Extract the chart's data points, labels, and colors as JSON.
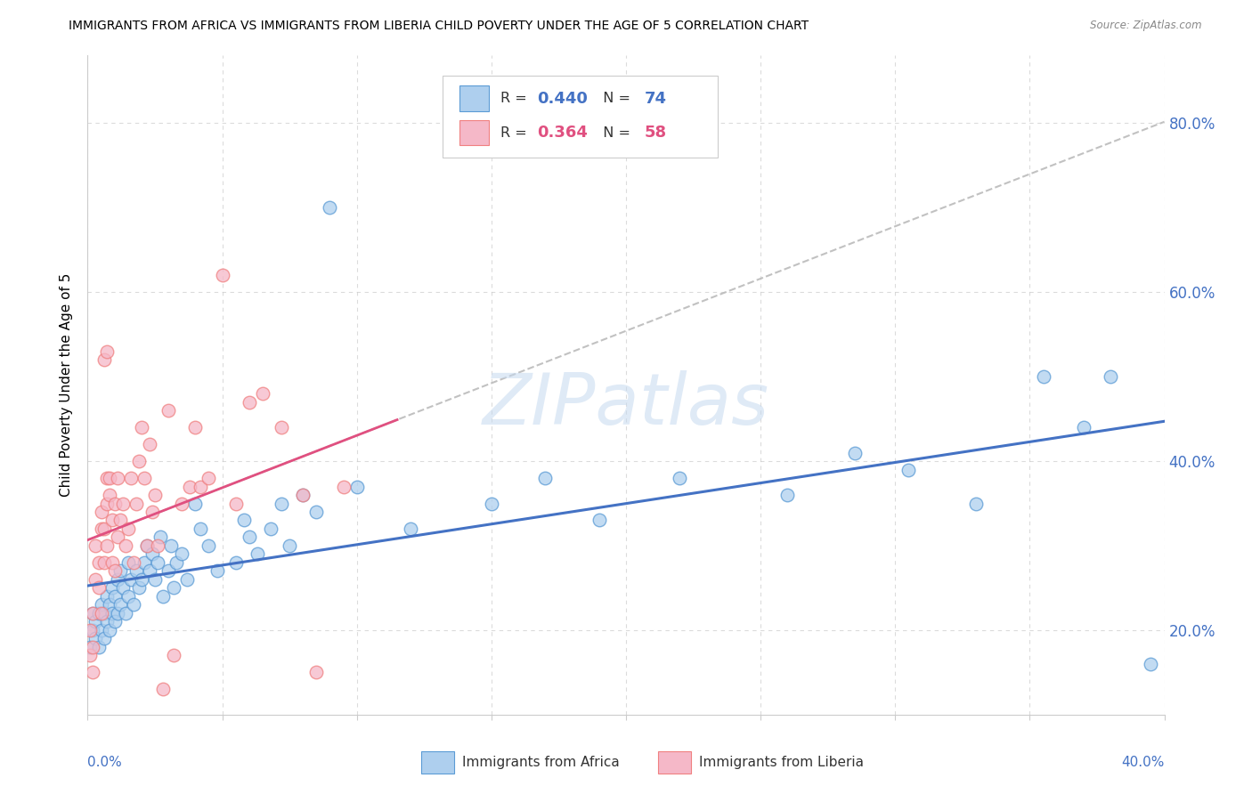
{
  "title": "IMMIGRANTS FROM AFRICA VS IMMIGRANTS FROM LIBERIA CHILD POVERTY UNDER THE AGE OF 5 CORRELATION CHART",
  "source": "Source: ZipAtlas.com",
  "ylabel": "Child Poverty Under the Age of 5",
  "xlim": [
    0.0,
    0.4
  ],
  "ylim": [
    0.1,
    0.88
  ],
  "africa_R": 0.44,
  "africa_N": 74,
  "liberia_R": 0.364,
  "liberia_N": 58,
  "africa_fill": "#aecfee",
  "liberia_fill": "#f5b8c8",
  "africa_edge": "#5b9bd5",
  "liberia_edge": "#f08080",
  "africa_line_color": "#4472c4",
  "liberia_line_color": "#e05080",
  "dash_line_color": "#bbbbbb",
  "ytick_right_labels": [
    "20.0%",
    "40.0%",
    "60.0%",
    "80.0%"
  ],
  "ytick_right_vals": [
    0.2,
    0.4,
    0.6,
    0.8
  ],
  "grid_color": "#cccccc",
  "background_color": "#ffffff",
  "watermark": "ZIPatlas",
  "legend_R1": "0.440",
  "legend_N1": "74",
  "legend_R2": "0.364",
  "legend_N2": "58",
  "legend_color1": "#4472c4",
  "legend_color2": "#e05080",
  "africa_scatter_x": [
    0.001,
    0.002,
    0.002,
    0.003,
    0.003,
    0.004,
    0.004,
    0.005,
    0.005,
    0.006,
    0.006,
    0.007,
    0.007,
    0.008,
    0.008,
    0.009,
    0.009,
    0.01,
    0.01,
    0.011,
    0.011,
    0.012,
    0.012,
    0.013,
    0.014,
    0.015,
    0.015,
    0.016,
    0.017,
    0.018,
    0.019,
    0.02,
    0.021,
    0.022,
    0.023,
    0.024,
    0.025,
    0.026,
    0.027,
    0.028,
    0.03,
    0.031,
    0.032,
    0.033,
    0.035,
    0.037,
    0.04,
    0.042,
    0.045,
    0.048,
    0.055,
    0.058,
    0.06,
    0.063,
    0.068,
    0.072,
    0.075,
    0.08,
    0.085,
    0.09,
    0.1,
    0.12,
    0.15,
    0.17,
    0.19,
    0.22,
    0.26,
    0.285,
    0.305,
    0.33,
    0.355,
    0.37,
    0.38,
    0.395
  ],
  "africa_scatter_y": [
    0.18,
    0.2,
    0.22,
    0.19,
    0.21,
    0.18,
    0.22,
    0.2,
    0.23,
    0.19,
    0.22,
    0.21,
    0.24,
    0.2,
    0.23,
    0.22,
    0.25,
    0.21,
    0.24,
    0.22,
    0.26,
    0.23,
    0.27,
    0.25,
    0.22,
    0.24,
    0.28,
    0.26,
    0.23,
    0.27,
    0.25,
    0.26,
    0.28,
    0.3,
    0.27,
    0.29,
    0.26,
    0.28,
    0.31,
    0.24,
    0.27,
    0.3,
    0.25,
    0.28,
    0.29,
    0.26,
    0.35,
    0.32,
    0.3,
    0.27,
    0.28,
    0.33,
    0.31,
    0.29,
    0.32,
    0.35,
    0.3,
    0.36,
    0.34,
    0.7,
    0.37,
    0.32,
    0.35,
    0.38,
    0.33,
    0.38,
    0.36,
    0.41,
    0.39,
    0.35,
    0.5,
    0.44,
    0.5,
    0.16
  ],
  "liberia_scatter_x": [
    0.001,
    0.001,
    0.002,
    0.002,
    0.002,
    0.003,
    0.003,
    0.004,
    0.004,
    0.005,
    0.005,
    0.005,
    0.006,
    0.006,
    0.006,
    0.007,
    0.007,
    0.007,
    0.007,
    0.008,
    0.008,
    0.009,
    0.009,
    0.01,
    0.01,
    0.011,
    0.011,
    0.012,
    0.013,
    0.014,
    0.015,
    0.016,
    0.017,
    0.018,
    0.019,
    0.02,
    0.021,
    0.022,
    0.023,
    0.024,
    0.025,
    0.026,
    0.028,
    0.03,
    0.032,
    0.035,
    0.038,
    0.04,
    0.042,
    0.045,
    0.05,
    0.055,
    0.06,
    0.065,
    0.072,
    0.08,
    0.085,
    0.095
  ],
  "liberia_scatter_y": [
    0.2,
    0.17,
    0.22,
    0.18,
    0.15,
    0.26,
    0.3,
    0.25,
    0.28,
    0.22,
    0.32,
    0.34,
    0.52,
    0.32,
    0.28,
    0.3,
    0.35,
    0.38,
    0.53,
    0.36,
    0.38,
    0.33,
    0.28,
    0.27,
    0.35,
    0.31,
    0.38,
    0.33,
    0.35,
    0.3,
    0.32,
    0.38,
    0.28,
    0.35,
    0.4,
    0.44,
    0.38,
    0.3,
    0.42,
    0.34,
    0.36,
    0.3,
    0.13,
    0.46,
    0.17,
    0.35,
    0.37,
    0.44,
    0.37,
    0.38,
    0.62,
    0.35,
    0.47,
    0.48,
    0.44,
    0.36,
    0.15,
    0.37
  ]
}
